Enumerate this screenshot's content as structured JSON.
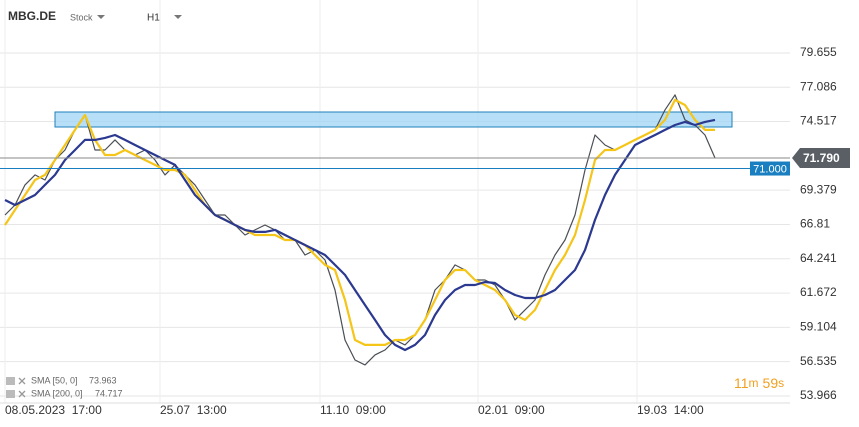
{
  "chart_data": {
    "type": "line",
    "symbol": "MBG.DE",
    "instrument_type": "Stock",
    "interval": "H1",
    "x": [
      0,
      1,
      2,
      3,
      4,
      5,
      6,
      7,
      8,
      9,
      10,
      11,
      12,
      13,
      14,
      15,
      16,
      17,
      18,
      19,
      20,
      21,
      22,
      23,
      24,
      25,
      26,
      27,
      28,
      29,
      30,
      31,
      32,
      33,
      34,
      35,
      36,
      37,
      38,
      39,
      40,
      41,
      42,
      43,
      44,
      45,
      46,
      47,
      48,
      49,
      50,
      51,
      52,
      53,
      54,
      55,
      56,
      57,
      58,
      59,
      60,
      61,
      62,
      63,
      64,
      65,
      66,
      67,
      68,
      69,
      70,
      71
    ],
    "xlim": [
      -0.5,
      78.5
    ],
    "xticks": [
      {
        "value": 0,
        "label": "08.05.2023  17:00"
      },
      {
        "value": 15.5,
        "label": "25.07  13:00"
      },
      {
        "value": 31.5,
        "label": "11.10  09:00"
      },
      {
        "value": 47.3,
        "label": "02.01  09:00"
      },
      {
        "value": 63.2,
        "label": "19.03  14:00"
      }
    ],
    "ylim": [
      53.44,
      83.62
    ],
    "yticks": [
      53.966,
      56.535,
      59.104,
      61.672,
      64.241,
      66.81,
      {
        "value": 69.379,
        "label": "69.379"
      },
      74.517,
      77.086,
      79.655
    ],
    "grid": true,
    "series": [
      {
        "color": "#4a4f55",
        "values": [
          67.52,
          68.27,
          69.77,
          70.52,
          70.14,
          71.64,
          72.39,
          73.89,
          75.01,
          72.39,
          72.39,
          73.14,
          72.39,
          72.01,
          72.39,
          71.64,
          70.52,
          71.27,
          70.52,
          69.77,
          68.64,
          67.52,
          67.52,
          66.77,
          66.02,
          66.4,
          66.77,
          66.4,
          65.65,
          65.65,
          64.52,
          64.9,
          64.15,
          61.9,
          58.16,
          56.66,
          56.29,
          57.04,
          57.41,
          58.16,
          57.79,
          58.53,
          59.66,
          61.9,
          62.65,
          63.78,
          63.4,
          62.65,
          62.65,
          62.28,
          61.15,
          59.66,
          60.41,
          61.15,
          63.03,
          64.52,
          65.65,
          67.52,
          70.89,
          73.51,
          72.76,
          72.39,
          72.76,
          73.14,
          73.51,
          73.89,
          75.39,
          76.51,
          74.64,
          74.26,
          73.51,
          71.79
        ]
      },
      {
        "name": "SMA [50, 0]",
        "legend_value": "73.963",
        "color": "#f5c518",
        "values": [
          66.77,
          67.9,
          69.02,
          70.14,
          70.52,
          71.64,
          72.76,
          73.89,
          75.01,
          73.14,
          72.01,
          72.01,
          72.39,
          72.01,
          71.64,
          71.27,
          70.89,
          70.89,
          70.52,
          69.39,
          68.27,
          67.52,
          67.15,
          66.77,
          66.4,
          66.02,
          66.02,
          66.02,
          65.65,
          65.65,
          65.27,
          64.52,
          63.78,
          63.4,
          61.15,
          58.16,
          57.79,
          57.79,
          57.79,
          58.16,
          58.16,
          58.53,
          59.66,
          61.15,
          62.65,
          63.4,
          63.4,
          62.65,
          62.28,
          61.9,
          61.15,
          60.03,
          59.66,
          60.41,
          61.9,
          63.4,
          64.52,
          66.02,
          68.64,
          71.64,
          72.39,
          72.39,
          72.76,
          73.14,
          73.51,
          73.89,
          74.64,
          76.14,
          75.76,
          74.64,
          73.89,
          73.89
        ]
      },
      {
        "name": "SMA [200, 0]",
        "legend_value": "74.717",
        "color": "#2b3990",
        "values": [
          68.64,
          68.27,
          68.64,
          69.02,
          69.77,
          70.52,
          71.64,
          72.39,
          73.14,
          73.14,
          73.29,
          73.51,
          73.14,
          72.76,
          72.39,
          72.01,
          71.64,
          71.27,
          70.14,
          69.02,
          68.27,
          67.52,
          67.15,
          66.77,
          66.4,
          66.25,
          66.25,
          66.4,
          66.02,
          65.65,
          65.27,
          64.9,
          64.52,
          63.78,
          63.03,
          61.9,
          60.78,
          59.66,
          58.53,
          57.79,
          57.41,
          57.79,
          58.53,
          60.03,
          61.15,
          61.9,
          62.28,
          62.28,
          62.5,
          62.43,
          61.9,
          61.53,
          61.3,
          61.3,
          61.53,
          61.9,
          62.65,
          63.4,
          64.9,
          67.15,
          69.02,
          70.52,
          71.64,
          72.76,
          73.14,
          73.51,
          73.89,
          74.26,
          74.49,
          74.26,
          74.49,
          74.64
        ]
      }
    ],
    "current_price": {
      "value": 71.79,
      "label": "71.790"
    },
    "level": {
      "value": 71,
      "label": "71.000"
    },
    "timer": [
      "11",
      "m",
      "59",
      "s"
    ]
  }
}
